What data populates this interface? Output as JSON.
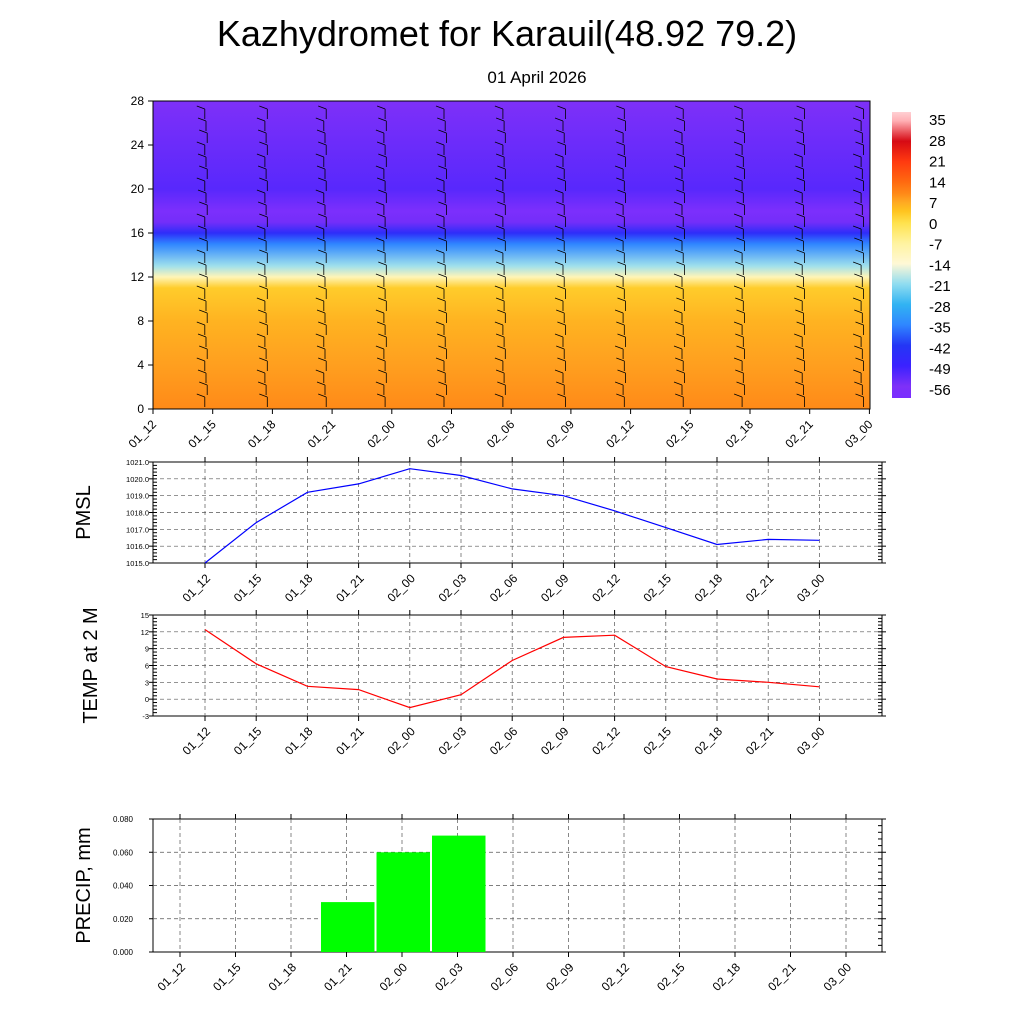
{
  "title": "Kazhydromet for Karauil(48.92 79.2)",
  "subtitle": "01 April 2026",
  "time_labels": [
    "01_12",
    "01_15",
    "01_18",
    "01_21",
    "02_00",
    "02_03",
    "02_06",
    "02_09",
    "02_12",
    "02_15",
    "02_18",
    "02_21",
    "03_00"
  ],
  "colors": {
    "pmsl_line": "#0000ff",
    "temp_line": "#ff0000",
    "precip_bar": "#00ff00",
    "grid": "#555555"
  },
  "chart_data": [
    {
      "type": "heatmap",
      "id": "cross-section",
      "description_axis": "height level vs time",
      "y_ticks": [
        0,
        4,
        8,
        12,
        16,
        20,
        24,
        28
      ],
      "ylim": [
        0,
        28
      ],
      "x_ticks": [
        "01_12",
        "01_15",
        "01_18",
        "01_21",
        "02_00",
        "02_03",
        "02_06",
        "02_09",
        "02_12",
        "02_15",
        "02_18",
        "02_21",
        "03_00"
      ],
      "colorbar_labels": [
        "35",
        "28",
        "21",
        "14",
        "7",
        "0",
        "-7",
        "-14",
        "-21",
        "-28",
        "-35",
        "-42",
        "-49",
        "-56"
      ],
      "colorbar_range": [
        -60,
        38
      ],
      "temperature_profile": [
        {
          "level": 0,
          "value": 10
        },
        {
          "level": 4,
          "value": 8
        },
        {
          "level": 8,
          "value": 6
        },
        {
          "level": 11,
          "value": 3
        },
        {
          "level": 12,
          "value": -10
        },
        {
          "level": 13,
          "value": -20
        },
        {
          "level": 15,
          "value": -35
        },
        {
          "level": 16,
          "value": -45
        },
        {
          "level": 17,
          "value": -55
        },
        {
          "level": 18,
          "value": -58
        },
        {
          "level": 20,
          "value": -52
        },
        {
          "level": 24,
          "value": -54
        },
        {
          "level": 28,
          "value": -56
        }
      ]
    },
    {
      "type": "line",
      "id": "pmsl",
      "ylabel": "PMSL",
      "ylim": [
        1015.0,
        1021.0
      ],
      "y_ticks": [
        "1015.0",
        "1016.0",
        "1017.0",
        "1018.0",
        "1019.0",
        "1020.0",
        "1021.0"
      ],
      "categories": [
        "01_12",
        "01_15",
        "01_18",
        "01_21",
        "02_00",
        "02_03",
        "02_06",
        "02_09",
        "02_12",
        "02_15",
        "02_18",
        "02_21",
        "03_00"
      ],
      "values": [
        1015.0,
        1017.4,
        1019.2,
        1019.7,
        1020.6,
        1020.2,
        1019.4,
        1019.0,
        1018.1,
        1017.1,
        1016.1,
        1016.4,
        1016.35
      ]
    },
    {
      "type": "line",
      "id": "temp",
      "ylabel": "TEMP at 2 M",
      "ylim": [
        -3,
        15
      ],
      "y_ticks": [
        "-3",
        "0",
        "3",
        "6",
        "9",
        "12",
        "15"
      ],
      "categories": [
        "01_12",
        "01_15",
        "01_18",
        "01_21",
        "02_00",
        "02_03",
        "02_06",
        "02_09",
        "02_12",
        "02_15",
        "02_18",
        "02_21",
        "03_00"
      ],
      "values": [
        12.4,
        6.3,
        2.3,
        1.7,
        -1.5,
        0.8,
        6.9,
        11.0,
        11.4,
        5.8,
        3.6,
        3.0,
        2.2
      ]
    },
    {
      "type": "bar",
      "id": "precip",
      "ylabel": "PRECIP, mm",
      "ylim": [
        0,
        0.08
      ],
      "y_ticks": [
        "0.000",
        "0.020",
        "0.040",
        "0.060",
        "0.080"
      ],
      "categories": [
        "01_12",
        "01_15",
        "01_18",
        "01_21",
        "02_00",
        "02_03",
        "02_06",
        "02_09",
        "02_12",
        "02_15",
        "02_18",
        "02_21",
        "03_00"
      ],
      "values": [
        0,
        0,
        0,
        0.03,
        0.06,
        0.07,
        0,
        0,
        0,
        0,
        0,
        0,
        0
      ]
    }
  ]
}
